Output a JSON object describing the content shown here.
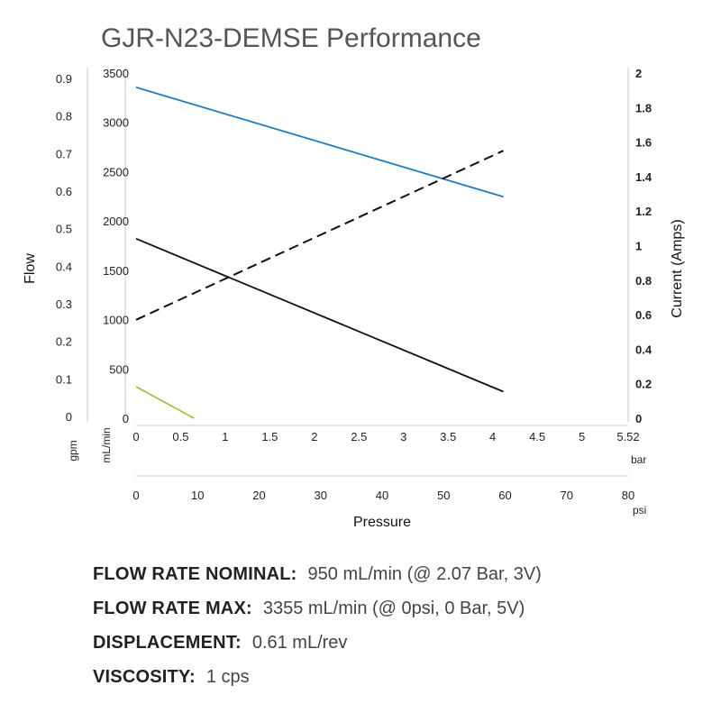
{
  "chart_data": {
    "type": "line",
    "title": "GJR-N23-DEMSE Performance",
    "xlabel": "Pressure",
    "ylabel_left": "Flow",
    "ylabel_right": "Current (Amps)",
    "axes": {
      "gpm": {
        "unit": "gpm",
        "ticks": [
          "0",
          "0.1",
          "0.2",
          "0.3",
          "0.4",
          "0.5",
          "0.6",
          "0.7",
          "0.8",
          "0.9"
        ]
      },
      "mlmin": {
        "unit": "mL/min",
        "range": [
          0,
          3500
        ],
        "ticks": [
          "0",
          "500",
          "1000",
          "1500",
          "2000",
          "2500",
          "3000",
          "3500"
        ]
      },
      "amps": {
        "range": [
          0,
          2
        ],
        "ticks": [
          "0",
          "0.2",
          "0.4",
          "0.6",
          "0.8",
          "1",
          "1.2",
          "1.4",
          "1.6",
          "1.8",
          "2"
        ]
      },
      "bar": {
        "unit": "bar",
        "range": [
          0,
          5.52
        ],
        "ticks": [
          "0",
          "0.5",
          "1",
          "1.5",
          "2",
          "2.5",
          "3",
          "3.5",
          "4",
          "4.5",
          "5",
          "5.52"
        ]
      },
      "psi": {
        "unit": "psi",
        "range": [
          0,
          80
        ],
        "ticks": [
          "0",
          "10",
          "20",
          "30",
          "40",
          "50",
          "60",
          "70",
          "80"
        ]
      }
    },
    "series": [
      {
        "color": "#1f7bbf",
        "style": "solid",
        "axis": "mL/min",
        "x": [
          0,
          4.12
        ],
        "y": [
          3355,
          2245
        ]
      },
      {
        "color": "#111111",
        "style": "solid",
        "axis": "mL/min",
        "x": [
          0,
          4.12
        ],
        "y": [
          1820,
          270
        ]
      },
      {
        "color": "#111111",
        "style": "dashed",
        "axis": "amps",
        "x": [
          0,
          4.12
        ],
        "y": [
          0.57,
          1.55
        ]
      },
      {
        "color": "#9bc53d",
        "style": "solid",
        "axis": "mL/min",
        "x": [
          0,
          0.65
        ],
        "y": [
          320,
          0
        ]
      }
    ],
    "grid": false
  },
  "specs": [
    {
      "label": "FLOW RATE NOMINAL:",
      "value": "950 mL/min (@ 2.07 Bar, 3V)"
    },
    {
      "label": "FLOW RATE MAX:",
      "value": "3355 mL/min (@ 0psi, 0 Bar, 5V)"
    },
    {
      "label": "DISPLACEMENT:",
      "value": "0.61 mL/rev"
    },
    {
      "label": "VISCOSITY:",
      "value": "1 cps"
    }
  ]
}
